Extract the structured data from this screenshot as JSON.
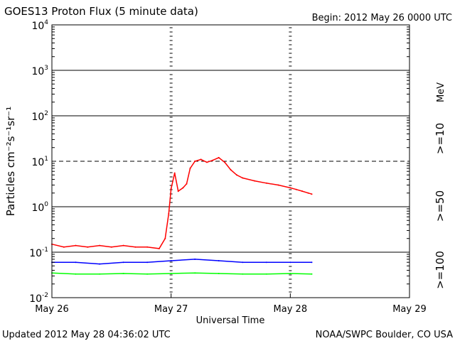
{
  "chart_data": {
    "type": "line",
    "title": "GOES13 Proton Flux (5 minute data)",
    "begin_label": "Begin: 2012 May 26 0000 UTC",
    "xlabel": "Universal Time",
    "ylabel": "Particles cm⁻²s⁻¹sr⁻¹",
    "x_ticks": [
      "May 26",
      "May 27",
      "May 28",
      "May 29"
    ],
    "y_ticks": [
      {
        "value": 0.01,
        "base": "10",
        "exp": "-2"
      },
      {
        "value": 0.1,
        "base": "10",
        "exp": "-1"
      },
      {
        "value": 1,
        "base": "10",
        "exp": "0"
      },
      {
        "value": 10,
        "base": "10",
        "exp": "1"
      },
      {
        "value": 100,
        "base": "10",
        "exp": "2"
      },
      {
        "value": 1000,
        "base": "10",
        "exp": "3"
      },
      {
        "value": 10000,
        "base": "10",
        "exp": "4"
      }
    ],
    "xlim_days": [
      0,
      3
    ],
    "ylim": [
      0.01,
      10000
    ],
    "y_scale": "log",
    "grid": "horizontal per decade; dashed line at 10",
    "units_label": "MeV",
    "series": [
      {
        "name": ">=10",
        "color": "#ff0000",
        "points": [
          [
            0.0,
            0.15
          ],
          [
            0.1,
            0.13
          ],
          [
            0.2,
            0.14
          ],
          [
            0.3,
            0.13
          ],
          [
            0.4,
            0.14
          ],
          [
            0.5,
            0.13
          ],
          [
            0.6,
            0.14
          ],
          [
            0.7,
            0.13
          ],
          [
            0.8,
            0.13
          ],
          [
            0.9,
            0.12
          ],
          [
            0.95,
            0.2
          ],
          [
            0.98,
            0.7
          ],
          [
            1.0,
            2.5
          ],
          [
            1.03,
            5.5
          ],
          [
            1.06,
            2.2
          ],
          [
            1.1,
            2.6
          ],
          [
            1.13,
            3.2
          ],
          [
            1.16,
            7.0
          ],
          [
            1.2,
            10.0
          ],
          [
            1.25,
            11.0
          ],
          [
            1.3,
            9.5
          ],
          [
            1.35,
            10.5
          ],
          [
            1.4,
            12.0
          ],
          [
            1.45,
            9.5
          ],
          [
            1.5,
            6.5
          ],
          [
            1.55,
            5.0
          ],
          [
            1.6,
            4.3
          ],
          [
            1.7,
            3.7
          ],
          [
            1.8,
            3.3
          ],
          [
            1.9,
            3.0
          ],
          [
            2.0,
            2.6
          ],
          [
            2.05,
            2.4
          ],
          [
            2.1,
            2.2
          ],
          [
            2.15,
            2.0
          ],
          [
            2.18,
            1.9
          ]
        ]
      },
      {
        "name": ">=50",
        "color": "#0000ff",
        "points": [
          [
            0.0,
            0.06
          ],
          [
            0.2,
            0.06
          ],
          [
            0.4,
            0.055
          ],
          [
            0.6,
            0.06
          ],
          [
            0.8,
            0.06
          ],
          [
            1.0,
            0.065
          ],
          [
            1.2,
            0.07
          ],
          [
            1.4,
            0.065
          ],
          [
            1.6,
            0.06
          ],
          [
            1.8,
            0.06
          ],
          [
            2.0,
            0.06
          ],
          [
            2.18,
            0.06
          ]
        ]
      },
      {
        "name": ">=100",
        "color": "#00ff00",
        "points": [
          [
            0.0,
            0.035
          ],
          [
            0.2,
            0.033
          ],
          [
            0.4,
            0.033
          ],
          [
            0.6,
            0.034
          ],
          [
            0.8,
            0.033
          ],
          [
            1.0,
            0.034
          ],
          [
            1.2,
            0.035
          ],
          [
            1.4,
            0.034
          ],
          [
            1.6,
            0.033
          ],
          [
            1.8,
            0.033
          ],
          [
            2.0,
            0.034
          ],
          [
            2.18,
            0.033
          ]
        ]
      }
    ]
  },
  "footer": {
    "updated": "Updated 2012 May 28 04:36:02 UTC",
    "credit": "NOAA/SWPC Boulder, CO USA"
  }
}
